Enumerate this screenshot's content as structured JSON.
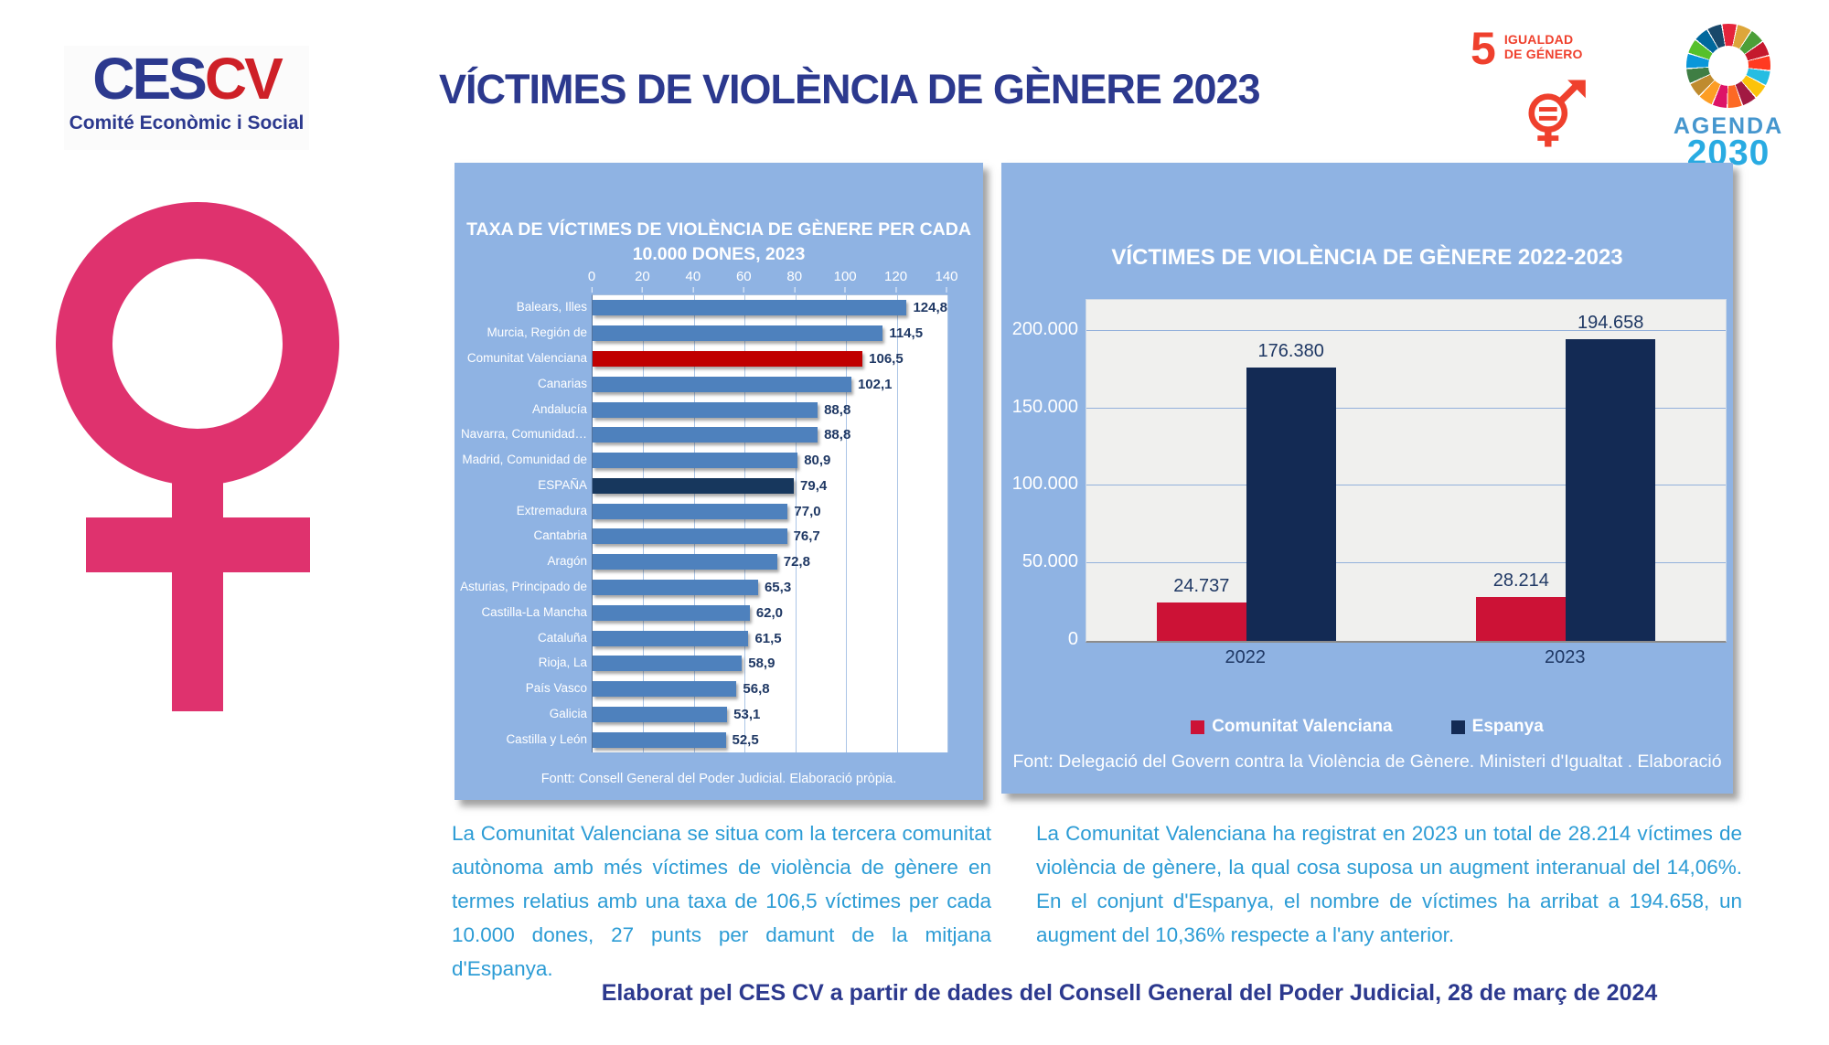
{
  "colors": {
    "accent_pink": "#DF326E",
    "navy": "#2C398E",
    "logo_red": "#CE2027",
    "sdg_red": "#EF402D",
    "agenda_blue": "#4596CE",
    "agenda_cyan": "#29ABE2",
    "paragraph_blue": "#2C9CD5",
    "panel_bg": "#8FB3E3"
  },
  "header": {
    "logo": {
      "part1": "CES",
      "part2": "CV",
      "subtitle": "Comité Econòmic i Social"
    },
    "title": "VÍCTIMES DE VIOLÈNCIA DE GÈNERE 2023",
    "sdg5": {
      "number": "5",
      "label_line1": "IGUALDAD",
      "label_line2": "DE GÉNERO"
    },
    "agenda2030": {
      "line1": "AGENDA",
      "line2": "2030",
      "wheel_colors": [
        "#E5243B",
        "#DDA63A",
        "#4C9F38",
        "#C5192D",
        "#FF3A21",
        "#26BDE2",
        "#FCC30B",
        "#A21942",
        "#FD6925",
        "#DD1367",
        "#FD9D24",
        "#BF8B2E",
        "#3F7E44",
        "#0A97D9",
        "#56C02B",
        "#00689D",
        "#19486A"
      ]
    }
  },
  "chart_data": [
    {
      "type": "bar",
      "orientation": "horizontal",
      "title": "TAXA DE VÍCTIMES DE VIOLÈNCIA DE GÈNERE PER CADA 10.000 DONES, 2023",
      "title_lines": [
        "TAXA DE VÍCTIMES DE VIOLÈNCIA DE GÈNERE PER CADA",
        "10.000 DONES, 2023"
      ],
      "categories": [
        "Balears, Illes",
        "Murcia, Región de",
        "Comunitat Valenciana",
        "Canarias",
        "Andalucía",
        "Navarra, Comunidad…",
        "Madrid, Comunidad de",
        "ESPAÑA",
        "Extremadura",
        "Cantabria",
        "Aragón",
        "Asturias, Principado de",
        "Castilla-La Mancha",
        "Cataluña",
        "Rioja, La",
        "País Vasco",
        "Galicia",
        "Castilla y León"
      ],
      "values": [
        124.8,
        114.5,
        106.5,
        102.1,
        88.8,
        88.8,
        80.9,
        79.4,
        77.0,
        76.7,
        72.8,
        65.3,
        62.0,
        61.5,
        58.9,
        56.8,
        53.1,
        52.5
      ],
      "value_labels": [
        "124,8",
        "114,5",
        "106,5",
        "102,1",
        "88,8",
        "88,8",
        "80,9",
        "79,4",
        "77,0",
        "76,7",
        "72,8",
        "65,3",
        "62,0",
        "61,5",
        "58,9",
        "56,8",
        "53,1",
        "52,5"
      ],
      "bar_colors": [
        "#4E81BD",
        "#4E81BD",
        "#C00000",
        "#4E81BD",
        "#4E81BD",
        "#4E81BD",
        "#4E81BD",
        "#17375D",
        "#4E81BD",
        "#4E81BD",
        "#4E81BD",
        "#4E81BD",
        "#4E81BD",
        "#4E81BD",
        "#4E81BD",
        "#4E81BD",
        "#4E81BD",
        "#4E81BD"
      ],
      "xlim": [
        0,
        140
      ],
      "x_ticks": [
        0,
        20,
        40,
        60,
        80,
        100,
        120,
        140
      ],
      "grid": true,
      "legend_position": "none",
      "source": "Fontt: Consell General del Poder Judicial. Elaboració pròpia."
    },
    {
      "type": "bar",
      "orientation": "vertical",
      "title": "VÍCTIMES DE VIOLÈNCIA DE GÈNERE 2022-2023",
      "categories": [
        "2022",
        "2023"
      ],
      "series": [
        {
          "name": "Comunitat Valenciana",
          "color": "#CC1236",
          "values": [
            24737,
            28214
          ],
          "labels": [
            "24.737",
            "28.214"
          ]
        },
        {
          "name": "Espanya",
          "color": "#132A54",
          "values": [
            176380,
            194658
          ],
          "labels": [
            "176.380",
            "194.658"
          ]
        }
      ],
      "ylim": [
        0,
        220000
      ],
      "y_ticks": [
        0,
        50000,
        100000,
        150000,
        200000
      ],
      "y_tick_labels": [
        "0",
        "50.000",
        "100.000",
        "150.000",
        "200.000"
      ],
      "grid": true,
      "legend_position": "bottom",
      "source": "Font: Delegació del Govern contra la Violència de Gènere. Ministeri d'Igualtat . Elaboració"
    }
  ],
  "paragraphs": {
    "left": "La Comunitat Valenciana se situa com la tercera comunitat autònoma amb més víctimes de violència de gènere en termes relatius amb una taxa de 106,5 víctimes per cada 10.000 dones, 27 punts per damunt de la mitjana d'Espanya.",
    "right": "La Comunitat Valenciana ha registrat en 2023 un total de 28.214 víctimes de violència de gènere, la qual cosa suposa un augment interanual del 14,06%. En el conjunt d'Espanya, el nombre de víctimes ha arribat a 194.658, un augment del 10,36% respecte a l'any anterior."
  },
  "footer": "Elaborat pel CES CV a partir de dades del Consell General del Poder Judicial, 28 de març de 2024"
}
